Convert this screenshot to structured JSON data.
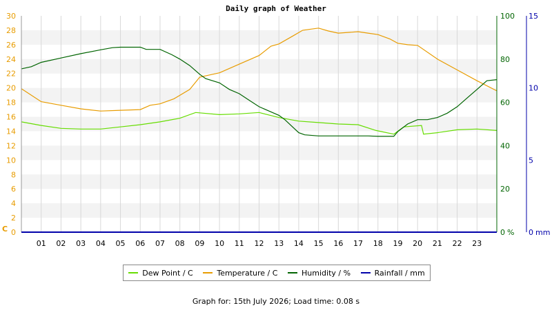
{
  "title": "Daily graph of Weather",
  "footer_text": "Graph for: 15th July 2026; Load time: 0.08 s",
  "chart_data": {
    "type": "line",
    "title": "Daily graph of Weather",
    "x_ticks": [
      "01",
      "02",
      "03",
      "04",
      "05",
      "06",
      "07",
      "08",
      "09",
      "10",
      "11",
      "12",
      "13",
      "14",
      "15",
      "16",
      "17",
      "18",
      "19",
      "20",
      "21",
      "22",
      "23"
    ],
    "x_range": [
      0,
      24
    ],
    "axes": {
      "temperature": {
        "unit_label": "C",
        "range": [
          0,
          30
        ],
        "ticks": [
          0,
          2,
          4,
          6,
          8,
          10,
          12,
          14,
          16,
          18,
          20,
          22,
          24,
          26,
          28,
          30
        ],
        "color": "#e89c00"
      },
      "humidity": {
        "unit_label": "%",
        "range": [
          0,
          100
        ],
        "ticks": [
          0,
          20,
          40,
          60,
          80,
          100
        ],
        "color": "#006400"
      },
      "rainfall": {
        "unit_label": "mm",
        "range": [
          0,
          15
        ],
        "ticks": [
          0,
          5,
          10,
          15
        ],
        "color": "#0000aa"
      }
    },
    "grid": true,
    "legend_position": "bottom",
    "series": [
      {
        "name": "Dew Point / C",
        "axis": "temperature",
        "color": "#66dd00",
        "points": [
          [
            0,
            15.3
          ],
          [
            1,
            14.8
          ],
          [
            2,
            14.4
          ],
          [
            3,
            14.3
          ],
          [
            4,
            14.3
          ],
          [
            5,
            14.6
          ],
          [
            6,
            14.9
          ],
          [
            7,
            15.3
          ],
          [
            8,
            15.8
          ],
          [
            8.8,
            16.6
          ],
          [
            10,
            16.3
          ],
          [
            11,
            16.4
          ],
          [
            12,
            16.6
          ],
          [
            13,
            15.9
          ],
          [
            14,
            15.4
          ],
          [
            15,
            15.2
          ],
          [
            16,
            15.0
          ],
          [
            17,
            14.9
          ],
          [
            17.9,
            14.1
          ],
          [
            18.8,
            13.6
          ],
          [
            19.3,
            14.6
          ],
          [
            20.2,
            14.8
          ],
          [
            20.3,
            13.6
          ],
          [
            21,
            13.8
          ],
          [
            22,
            14.2
          ],
          [
            23,
            14.3
          ],
          [
            24,
            14.1
          ]
        ]
      },
      {
        "name": "Temperature / C",
        "axis": "temperature",
        "color": "#e89c00",
        "points": [
          [
            0,
            19.9
          ],
          [
            1,
            18.1
          ],
          [
            2,
            17.6
          ],
          [
            3,
            17.1
          ],
          [
            4,
            16.8
          ],
          [
            5,
            16.9
          ],
          [
            6,
            17.0
          ],
          [
            6.5,
            17.6
          ],
          [
            7,
            17.8
          ],
          [
            7.7,
            18.5
          ],
          [
            8.5,
            19.8
          ],
          [
            9,
            21.5
          ],
          [
            9.5,
            21.8
          ],
          [
            10,
            22.1
          ],
          [
            11,
            23.3
          ],
          [
            12,
            24.5
          ],
          [
            12.6,
            25.8
          ],
          [
            13,
            26.1
          ],
          [
            13.7,
            27.2
          ],
          [
            14.2,
            28.0
          ],
          [
            15,
            28.3
          ],
          [
            15.5,
            27.9
          ],
          [
            16,
            27.6
          ],
          [
            17,
            27.8
          ],
          [
            17.5,
            27.6
          ],
          [
            18,
            27.4
          ],
          [
            18.6,
            26.8
          ],
          [
            19,
            26.2
          ],
          [
            19.5,
            26.0
          ],
          [
            20,
            25.9
          ],
          [
            21,
            24.0
          ],
          [
            22,
            22.5
          ],
          [
            23,
            21.0
          ],
          [
            24,
            19.6
          ]
        ]
      },
      {
        "name": "Humidity / %",
        "axis": "humidity",
        "color": "#006400",
        "points": [
          [
            0,
            75.5
          ],
          [
            0.5,
            76.5
          ],
          [
            1,
            78.5
          ],
          [
            2,
            80.5
          ],
          [
            3,
            82.5
          ],
          [
            4,
            84.3
          ],
          [
            4.6,
            85.3
          ],
          [
            5,
            85.5
          ],
          [
            6,
            85.5
          ],
          [
            6.3,
            84.5
          ],
          [
            7,
            84.5
          ],
          [
            7.6,
            82
          ],
          [
            8,
            80
          ],
          [
            8.5,
            77
          ],
          [
            9,
            73
          ],
          [
            9.3,
            71
          ],
          [
            10,
            69
          ],
          [
            10.5,
            66
          ],
          [
            11,
            64
          ],
          [
            11.5,
            61
          ],
          [
            12,
            58
          ],
          [
            12.5,
            56
          ],
          [
            13,
            54
          ],
          [
            13.3,
            52
          ],
          [
            14,
            46
          ],
          [
            14.3,
            45
          ],
          [
            15,
            44.5
          ],
          [
            16,
            44.5
          ],
          [
            17,
            44.5
          ],
          [
            17.5,
            44.5
          ],
          [
            18,
            44.3
          ],
          [
            18.5,
            44.3
          ],
          [
            18.8,
            44.3
          ],
          [
            19,
            46.5
          ],
          [
            19.5,
            50
          ],
          [
            20,
            52
          ],
          [
            20.5,
            52
          ],
          [
            21,
            53
          ],
          [
            21.5,
            55
          ],
          [
            22,
            58
          ],
          [
            22.5,
            62
          ],
          [
            23,
            66
          ],
          [
            23.5,
            70
          ],
          [
            24,
            70.5
          ]
        ]
      },
      {
        "name": "Rainfall / mm",
        "axis": "rainfall",
        "color": "#0000aa",
        "points": [
          [
            0,
            0
          ],
          [
            24,
            0
          ]
        ]
      }
    ]
  }
}
